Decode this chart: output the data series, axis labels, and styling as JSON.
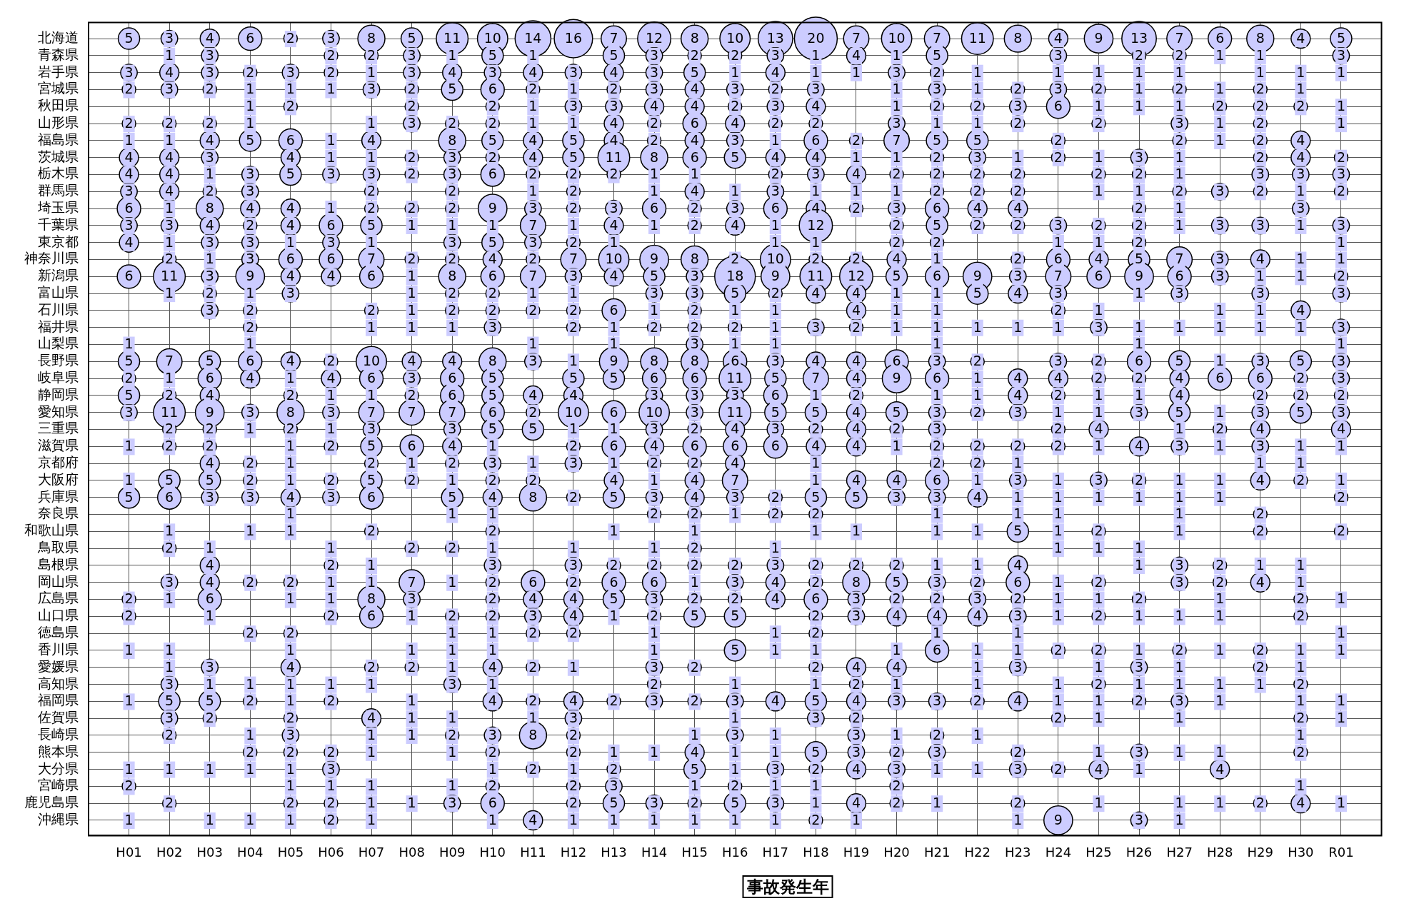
{
  "chart_data": {
    "type": "heatmap",
    "xlabel": "事故発生年",
    "color": "#ccccff",
    "grid": true,
    "marker": "circle",
    "data_labels": true,
    "categories": [
      "H01",
      "H02",
      "H03",
      "H04",
      "H05",
      "H06",
      "H07",
      "H08",
      "H09",
      "H10",
      "H11",
      "H12",
      "H13",
      "H14",
      "H15",
      "H16",
      "H17",
      "H18",
      "H19",
      "H20",
      "H21",
      "H22",
      "H23",
      "H24",
      "H25",
      "H26",
      "H27",
      "H28",
      "H29",
      "H30",
      "R01"
    ],
    "y_categories": [
      "北海道",
      "青森県",
      "岩手県",
      "宮城県",
      "秋田県",
      "山形県",
      "福島県",
      "茨城県",
      "栃木県",
      "群馬県",
      "埼玉県",
      "千葉県",
      "東京都",
      "神奈川県",
      "新潟県",
      "富山県",
      "石川県",
      "福井県",
      "山梨県",
      "長野県",
      "岐阜県",
      "静岡県",
      "愛知県",
      "三重県",
      "滋賀県",
      "京都府",
      "大阪府",
      "兵庫県",
      "奈良県",
      "和歌山県",
      "鳥取県",
      "島根県",
      "岡山県",
      "広島県",
      "山口県",
      "徳島県",
      "香川県",
      "愛媛県",
      "高知県",
      "福岡県",
      "佐賀県",
      "長崎県",
      "熊本県",
      "大分県",
      "宮崎県",
      "鹿児島県",
      "沖縄県"
    ],
    "cells": [
      [
        5,
        3,
        4,
        6,
        2,
        3,
        8,
        5,
        11,
        10,
        14,
        16,
        7,
        12,
        8,
        10,
        13,
        20,
        7,
        10,
        7,
        11,
        8,
        4,
        9,
        13,
        7,
        6,
        8,
        4,
        5
      ],
      [
        null,
        1,
        3,
        null,
        null,
        2,
        2,
        3,
        1,
        5,
        1,
        null,
        5,
        3,
        2,
        2,
        3,
        1,
        4,
        1,
        5,
        null,
        null,
        3,
        null,
        2,
        2,
        1,
        1,
        null,
        3
      ],
      [
        3,
        4,
        3,
        2,
        3,
        2,
        1,
        3,
        4,
        3,
        4,
        3,
        4,
        3,
        5,
        1,
        4,
        1,
        1,
        3,
        2,
        1,
        null,
        1,
        1,
        1,
        1,
        null,
        1,
        1,
        1
      ],
      [
        2,
        3,
        2,
        1,
        1,
        1,
        3,
        2,
        5,
        6,
        2,
        1,
        2,
        3,
        4,
        3,
        2,
        3,
        null,
        1,
        3,
        1,
        2,
        3,
        2,
        1,
        2,
        1,
        2,
        1,
        null
      ],
      [
        null,
        null,
        null,
        1,
        2,
        null,
        null,
        2,
        null,
        2,
        1,
        3,
        3,
        4,
        4,
        2,
        3,
        4,
        null,
        1,
        2,
        2,
        3,
        6,
        1,
        1,
        1,
        2,
        2,
        2,
        1
      ],
      [
        2,
        2,
        2,
        1,
        null,
        null,
        1,
        3,
        2,
        2,
        1,
        1,
        4,
        2,
        6,
        4,
        2,
        2,
        null,
        3,
        1,
        1,
        2,
        null,
        2,
        null,
        3,
        1,
        2,
        null,
        1
      ],
      [
        1,
        1,
        4,
        5,
        6,
        1,
        4,
        null,
        8,
        5,
        4,
        5,
        4,
        2,
        4,
        3,
        1,
        6,
        2,
        7,
        5,
        5,
        null,
        2,
        null,
        null,
        2,
        1,
        2,
        4,
        null
      ],
      [
        4,
        4,
        3,
        null,
        4,
        1,
        1,
        2,
        3,
        2,
        4,
        5,
        11,
        8,
        6,
        5,
        4,
        4,
        1,
        1,
        2,
        3,
        1,
        2,
        1,
        3,
        1,
        null,
        2,
        4,
        2
      ],
      [
        4,
        4,
        1,
        3,
        5,
        3,
        3,
        2,
        3,
        6,
        2,
        2,
        2,
        1,
        1,
        null,
        2,
        3,
        4,
        2,
        2,
        2,
        2,
        null,
        2,
        2,
        1,
        null,
        3,
        3,
        3
      ],
      [
        3,
        4,
        2,
        3,
        null,
        null,
        2,
        null,
        2,
        null,
        1,
        2,
        null,
        1,
        4,
        1,
        3,
        1,
        1,
        1,
        2,
        2,
        2,
        null,
        1,
        1,
        2,
        3,
        2,
        1,
        2
      ],
      [
        6,
        1,
        8,
        4,
        4,
        1,
        2,
        2,
        2,
        9,
        3,
        2,
        3,
        6,
        2,
        3,
        6,
        4,
        2,
        3,
        6,
        4,
        4,
        null,
        null,
        2,
        1,
        null,
        null,
        3,
        null
      ],
      [
        3,
        3,
        4,
        2,
        4,
        6,
        5,
        1,
        1,
        1,
        7,
        1,
        4,
        1,
        2,
        4,
        1,
        12,
        null,
        2,
        5,
        2,
        2,
        3,
        2,
        2,
        1,
        3,
        3,
        1,
        3
      ],
      [
        4,
        1,
        3,
        3,
        1,
        3,
        1,
        null,
        3,
        5,
        3,
        2,
        1,
        null,
        null,
        null,
        1,
        1,
        null,
        2,
        2,
        null,
        null,
        1,
        1,
        2,
        null,
        null,
        null,
        null,
        1
      ],
      [
        null,
        2,
        1,
        3,
        6,
        6,
        7,
        2,
        2,
        4,
        2,
        7,
        10,
        9,
        8,
        2,
        10,
        2,
        2,
        4,
        1,
        null,
        2,
        6,
        4,
        5,
        7,
        3,
        4,
        1,
        1
      ],
      [
        6,
        11,
        3,
        9,
        4,
        4,
        6,
        1,
        8,
        6,
        7,
        3,
        4,
        5,
        3,
        18,
        9,
        11,
        12,
        5,
        6,
        9,
        3,
        7,
        6,
        9,
        6,
        3,
        1,
        1,
        2
      ],
      [
        null,
        1,
        2,
        1,
        3,
        null,
        null,
        1,
        2,
        2,
        1,
        1,
        null,
        3,
        3,
        5,
        2,
        4,
        4,
        1,
        1,
        5,
        4,
        3,
        null,
        1,
        3,
        null,
        3,
        null,
        3
      ],
      [
        null,
        null,
        3,
        2,
        null,
        null,
        2,
        1,
        2,
        2,
        2,
        2,
        6,
        1,
        2,
        1,
        1,
        null,
        4,
        1,
        1,
        null,
        null,
        2,
        1,
        null,
        null,
        1,
        1,
        4,
        null
      ],
      [
        null,
        null,
        null,
        2,
        null,
        null,
        1,
        1,
        1,
        3,
        null,
        2,
        1,
        2,
        2,
        2,
        1,
        3,
        2,
        1,
        1,
        1,
        1,
        1,
        3,
        1,
        1,
        1,
        1,
        1,
        3
      ],
      [
        1,
        null,
        null,
        1,
        null,
        null,
        null,
        null,
        null,
        null,
        1,
        null,
        1,
        null,
        3,
        1,
        1,
        null,
        null,
        null,
        1,
        null,
        null,
        null,
        null,
        1,
        null,
        null,
        null,
        null,
        1
      ],
      [
        5,
        7,
        5,
        6,
        4,
        2,
        10,
        4,
        4,
        8,
        3,
        1,
        9,
        8,
        8,
        6,
        3,
        4,
        4,
        6,
        3,
        2,
        null,
        3,
        2,
        6,
        5,
        1,
        3,
        5,
        3
      ],
      [
        2,
        1,
        6,
        4,
        1,
        4,
        6,
        3,
        6,
        5,
        null,
        5,
        5,
        6,
        6,
        11,
        5,
        7,
        4,
        9,
        6,
        1,
        4,
        4,
        2,
        2,
        4,
        6,
        6,
        2,
        3
      ],
      [
        5,
        2,
        4,
        null,
        2,
        1,
        1,
        2,
        6,
        5,
        4,
        4,
        null,
        3,
        3,
        3,
        6,
        1,
        2,
        null,
        1,
        1,
        4,
        2,
        1,
        1,
        4,
        null,
        2,
        2,
        2
      ],
      [
        3,
        11,
        9,
        3,
        8,
        3,
        7,
        7,
        7,
        6,
        2,
        10,
        6,
        10,
        3,
        11,
        5,
        5,
        4,
        5,
        3,
        2,
        3,
        1,
        1,
        3,
        5,
        1,
        3,
        5,
        3
      ],
      [
        null,
        2,
        2,
        1,
        2,
        1,
        3,
        null,
        3,
        5,
        5,
        1,
        1,
        3,
        2,
        4,
        3,
        2,
        4,
        2,
        3,
        null,
        null,
        2,
        4,
        null,
        1,
        2,
        4,
        null,
        4
      ],
      [
        1,
        2,
        2,
        null,
        1,
        2,
        5,
        6,
        4,
        1,
        null,
        2,
        6,
        4,
        6,
        6,
        6,
        4,
        4,
        1,
        2,
        2,
        2,
        2,
        1,
        4,
        3,
        1,
        3,
        1,
        1
      ],
      [
        null,
        null,
        4,
        2,
        1,
        null,
        2,
        1,
        2,
        3,
        1,
        3,
        1,
        2,
        2,
        4,
        null,
        1,
        null,
        null,
        2,
        2,
        1,
        null,
        null,
        null,
        null,
        null,
        1,
        1,
        null
      ],
      [
        1,
        5,
        5,
        2,
        1,
        2,
        5,
        2,
        1,
        2,
        2,
        null,
        4,
        1,
        4,
        7,
        null,
        1,
        4,
        4,
        6,
        1,
        3,
        1,
        3,
        2,
        1,
        1,
        4,
        2,
        1
      ],
      [
        5,
        6,
        3,
        3,
        4,
        3,
        6,
        null,
        5,
        4,
        8,
        2,
        5,
        3,
        4,
        3,
        2,
        5,
        5,
        3,
        3,
        4,
        1,
        1,
        1,
        1,
        1,
        1,
        null,
        null,
        2
      ],
      [
        null,
        null,
        null,
        null,
        1,
        null,
        null,
        null,
        1,
        1,
        null,
        null,
        null,
        2,
        2,
        1,
        2,
        2,
        null,
        null,
        1,
        null,
        1,
        1,
        null,
        null,
        1,
        null,
        2,
        null,
        null
      ],
      [
        null,
        1,
        null,
        1,
        1,
        null,
        2,
        null,
        null,
        2,
        null,
        null,
        1,
        null,
        1,
        null,
        null,
        1,
        1,
        null,
        1,
        1,
        5,
        1,
        2,
        null,
        1,
        null,
        2,
        null,
        2
      ],
      [
        null,
        2,
        1,
        null,
        null,
        1,
        null,
        2,
        2,
        1,
        null,
        1,
        null,
        1,
        2,
        null,
        1,
        null,
        null,
        null,
        null,
        null,
        null,
        1,
        1,
        1,
        null,
        null,
        null,
        null,
        null
      ],
      [
        null,
        null,
        4,
        null,
        null,
        2,
        1,
        null,
        null,
        3,
        null,
        3,
        2,
        2,
        2,
        2,
        3,
        2,
        2,
        2,
        1,
        1,
        4,
        null,
        null,
        1,
        3,
        2,
        1,
        1,
        null
      ],
      [
        null,
        3,
        4,
        2,
        2,
        1,
        1,
        7,
        1,
        2,
        6,
        2,
        6,
        6,
        1,
        3,
        4,
        2,
        8,
        5,
        3,
        2,
        6,
        1,
        2,
        null,
        3,
        2,
        4,
        1,
        null
      ],
      [
        2,
        1,
        6,
        null,
        1,
        1,
        8,
        3,
        null,
        2,
        4,
        4,
        5,
        3,
        2,
        2,
        4,
        6,
        3,
        2,
        2,
        3,
        2,
        1,
        1,
        2,
        null,
        1,
        null,
        2,
        1
      ],
      [
        2,
        null,
        1,
        null,
        null,
        2,
        6,
        1,
        2,
        2,
        3,
        4,
        1,
        2,
        5,
        5,
        null,
        2,
        3,
        4,
        4,
        4,
        3,
        1,
        2,
        1,
        1,
        1,
        null,
        2,
        null
      ],
      [
        null,
        null,
        null,
        2,
        2,
        null,
        null,
        null,
        1,
        1,
        2,
        2,
        null,
        1,
        null,
        null,
        1,
        2,
        null,
        null,
        1,
        null,
        1,
        null,
        null,
        null,
        null,
        null,
        null,
        null,
        1
      ],
      [
        1,
        1,
        null,
        null,
        1,
        null,
        null,
        1,
        1,
        1,
        null,
        null,
        null,
        1,
        null,
        5,
        1,
        1,
        null,
        1,
        6,
        1,
        1,
        2,
        2,
        1,
        2,
        1,
        2,
        1,
        1
      ],
      [
        null,
        1,
        3,
        null,
        4,
        null,
        2,
        2,
        1,
        4,
        2,
        1,
        null,
        3,
        2,
        null,
        null,
        2,
        4,
        4,
        null,
        1,
        3,
        null,
        1,
        3,
        1,
        null,
        2,
        1,
        null
      ],
      [
        null,
        3,
        1,
        1,
        1,
        1,
        1,
        null,
        3,
        1,
        null,
        null,
        null,
        2,
        null,
        1,
        null,
        1,
        2,
        1,
        null,
        1,
        null,
        1,
        2,
        1,
        1,
        1,
        1,
        2,
        null
      ],
      [
        1,
        5,
        5,
        2,
        1,
        2,
        null,
        1,
        null,
        4,
        2,
        4,
        2,
        3,
        2,
        3,
        4,
        5,
        4,
        3,
        3,
        2,
        4,
        1,
        1,
        2,
        3,
        1,
        null,
        1,
        1
      ],
      [
        null,
        3,
        2,
        null,
        2,
        null,
        4,
        1,
        1,
        null,
        1,
        3,
        null,
        null,
        null,
        1,
        null,
        3,
        2,
        null,
        null,
        null,
        null,
        2,
        1,
        null,
        1,
        null,
        null,
        2,
        1
      ],
      [
        null,
        2,
        null,
        1,
        3,
        null,
        1,
        1,
        2,
        3,
        8,
        2,
        null,
        null,
        1,
        3,
        1,
        null,
        3,
        1,
        2,
        1,
        null,
        null,
        null,
        null,
        null,
        null,
        null,
        1,
        null
      ],
      [
        null,
        null,
        null,
        2,
        2,
        2,
        1,
        null,
        1,
        2,
        null,
        2,
        1,
        1,
        4,
        1,
        1,
        5,
        3,
        2,
        3,
        null,
        2,
        null,
        1,
        3,
        1,
        1,
        null,
        2,
        null
      ],
      [
        1,
        1,
        1,
        1,
        1,
        3,
        null,
        null,
        null,
        1,
        2,
        1,
        2,
        null,
        5,
        1,
        3,
        2,
        4,
        3,
        1,
        1,
        3,
        2,
        4,
        1,
        null,
        4,
        null,
        null,
        null
      ],
      [
        2,
        null,
        null,
        null,
        1,
        1,
        1,
        null,
        1,
        2,
        null,
        2,
        3,
        null,
        1,
        2,
        1,
        1,
        null,
        2,
        null,
        null,
        null,
        null,
        null,
        null,
        null,
        null,
        null,
        1,
        null
      ],
      [
        null,
        2,
        null,
        null,
        2,
        2,
        1,
        1,
        3,
        6,
        null,
        2,
        5,
        3,
        2,
        5,
        3,
        1,
        4,
        2,
        1,
        null,
        2,
        null,
        1,
        null,
        1,
        1,
        2,
        4,
        1
      ],
      [
        1,
        null,
        1,
        1,
        1,
        2,
        1,
        null,
        null,
        1,
        4,
        1,
        1,
        1,
        1,
        1,
        1,
        2,
        1,
        null,
        null,
        null,
        1,
        9,
        null,
        3,
        1,
        null,
        null,
        null,
        null
      ]
    ]
  }
}
